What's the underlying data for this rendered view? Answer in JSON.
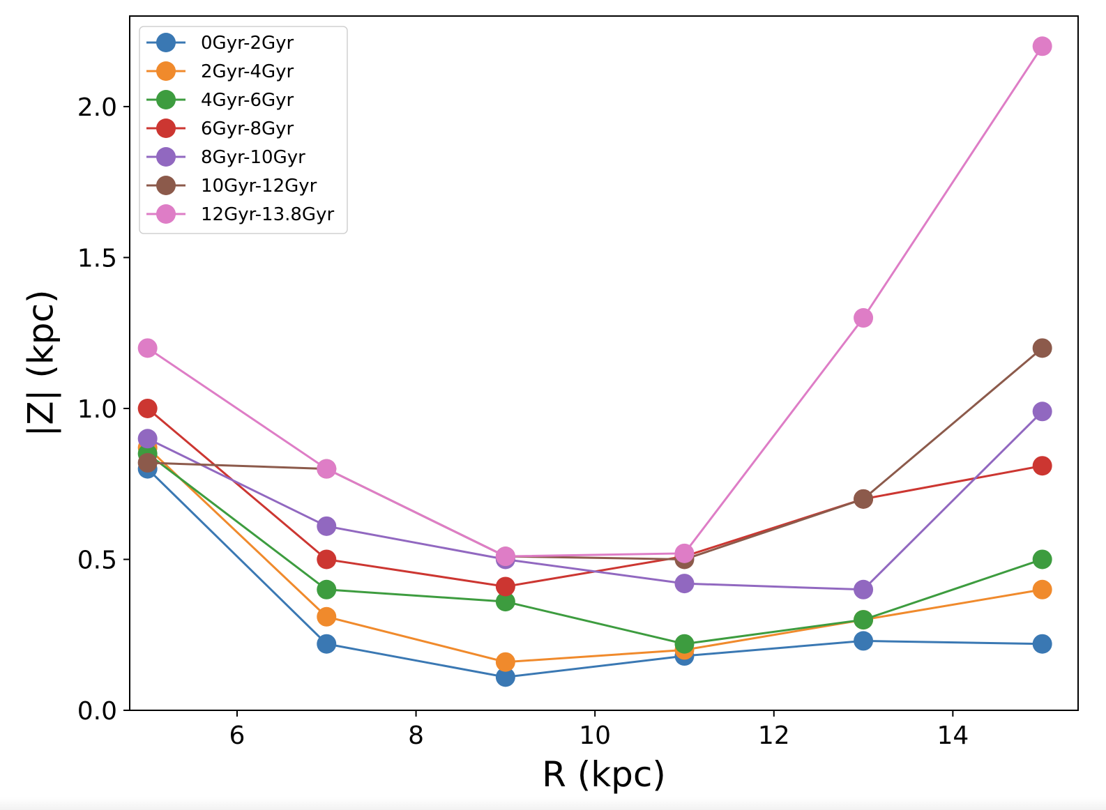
{
  "chart_data": {
    "type": "line",
    "xlabel": "R (kpc)",
    "ylabel": "|Z| (kpc)",
    "xlim": [
      4.8,
      15.4
    ],
    "ylim": [
      0.0,
      2.3
    ],
    "xticks": [
      6,
      8,
      10,
      12,
      14
    ],
    "yticks": [
      0.0,
      0.5,
      1.0,
      1.5,
      2.0
    ],
    "xtick_labels": [
      "6",
      "8",
      "10",
      "12",
      "14"
    ],
    "ytick_labels": [
      "0.0",
      "0.5",
      "1.0",
      "1.5",
      "2.0"
    ],
    "grid": false,
    "legend_position": "top-left",
    "x": [
      5,
      7,
      9,
      11,
      13,
      15
    ],
    "series": [
      {
        "name": "0Gyr-2Gyr",
        "color": "#3a78b3",
        "values": [
          0.8,
          0.22,
          0.11,
          0.18,
          0.23,
          0.22
        ]
      },
      {
        "name": "2Gyr-4Gyr",
        "color": "#f08a2c",
        "values": [
          0.87,
          0.31,
          0.16,
          0.2,
          0.3,
          0.4
        ]
      },
      {
        "name": "4Gyr-6Gyr",
        "color": "#3d9c3f",
        "values": [
          0.85,
          0.4,
          0.36,
          0.22,
          0.3,
          0.5
        ]
      },
      {
        "name": "6Gyr-8Gyr",
        "color": "#cc3631",
        "values": [
          1.0,
          0.5,
          0.41,
          0.51,
          0.7,
          0.81
        ]
      },
      {
        "name": "8Gyr-10Gyr",
        "color": "#9168c0",
        "values": [
          0.9,
          0.61,
          0.5,
          0.42,
          0.4,
          0.99
        ]
      },
      {
        "name": "10Gyr-12Gyr",
        "color": "#8c5a4b",
        "values": [
          0.82,
          0.8,
          0.51,
          0.5,
          0.7,
          1.2
        ]
      },
      {
        "name": "12Gyr-13.8Gyr",
        "color": "#de7dc6",
        "values": [
          1.2,
          0.8,
          0.51,
          0.52,
          1.3,
          2.2
        ]
      }
    ]
  }
}
